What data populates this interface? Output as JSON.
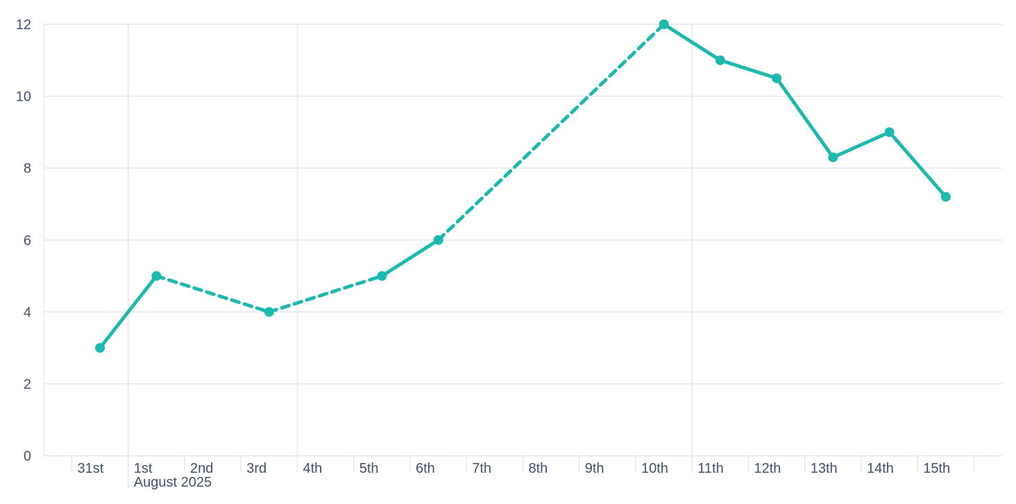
{
  "page": {
    "background": "#ffffff"
  },
  "chart_data": {
    "type": "line",
    "title": "",
    "xlabel": "",
    "ylabel": "",
    "x_axis": {
      "tick_labels": [
        "31st",
        "1st",
        "2nd",
        "3rd",
        "4th",
        "5th",
        "6th",
        "7th",
        "8th",
        "9th",
        "10th",
        "11th",
        "12th",
        "13th",
        "14th",
        "15th"
      ],
      "month_label": "August 2025",
      "month_label_index": 1,
      "month_boundary_index": 1,
      "week_boundary_indices": [
        4,
        11
      ],
      "trailing_unlabeled_tick": true
    },
    "y_axis": {
      "min": 0,
      "max": 12,
      "tick_step": 2,
      "tick_labels": [
        "0",
        "2",
        "4",
        "6",
        "8",
        "10",
        "12"
      ]
    },
    "series": [
      {
        "name": "value",
        "color": "#1eb9ae",
        "marker": "circle",
        "values": [
          3,
          5,
          null,
          4,
          null,
          5,
          6,
          null,
          null,
          null,
          12,
          11,
          10.5,
          8.3,
          9,
          7.2
        ],
        "style_between_adjacent_points": "solid",
        "style_across_gaps": "dashed"
      }
    ],
    "grid": {
      "horizontal": true,
      "vertical_on_week_boundaries": true,
      "color": "#e3e7f0"
    },
    "legend": false
  },
  "colors": {
    "axis_text": "#42506a",
    "grid": "#e3e7f0",
    "line": "#1eb9ae",
    "background": "#ffffff"
  }
}
